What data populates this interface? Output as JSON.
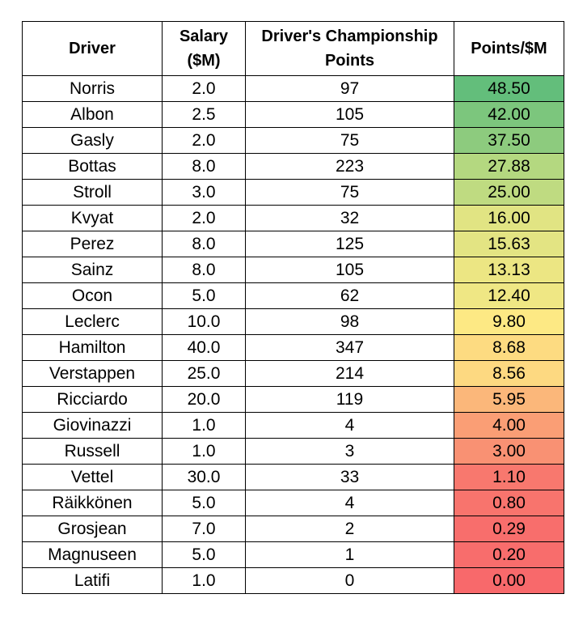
{
  "headers": {
    "driver": "Driver",
    "salary_line1": "Salary",
    "salary_line2": "($M)",
    "points_line1": "Driver's Championship",
    "points_line2": "Points",
    "ratio": "Points/$M"
  },
  "rows": [
    {
      "driver": "Norris",
      "salary": "2.0",
      "points": "97",
      "ratio": "48.50",
      "color": "#63BE7B"
    },
    {
      "driver": "Albon",
      "salary": "2.5",
      "points": "105",
      "ratio": "42.00",
      "color": "#7CC67D"
    },
    {
      "driver": "Gasly",
      "salary": "2.0",
      "points": "75",
      "ratio": "37.50",
      "color": "#8DCB7E"
    },
    {
      "driver": "Bottas",
      "salary": "8.0",
      "points": "223",
      "ratio": "27.88",
      "color": "#B4D880"
    },
    {
      "driver": "Stroll",
      "salary": "3.0",
      "points": "75",
      "ratio": "25.00",
      "color": "#BFDB81"
    },
    {
      "driver": "Kvyat",
      "salary": "2.0",
      "points": "32",
      "ratio": "16.00",
      "color": "#E1E483"
    },
    {
      "driver": "Perez",
      "salary": "8.0",
      "points": "125",
      "ratio": "15.63",
      "color": "#E3E483"
    },
    {
      "driver": "Sainz",
      "salary": "8.0",
      "points": "105",
      "ratio": "13.13",
      "color": "#ECE683"
    },
    {
      "driver": "Ocon",
      "salary": "5.0",
      "points": "62",
      "ratio": "12.40",
      "color": "#EFE784"
    },
    {
      "driver": "Leclerc",
      "salary": "10.0",
      "points": "98",
      "ratio": "9.80",
      "color": "#FDE984"
    },
    {
      "driver": "Hamilton",
      "salary": "40.0",
      "points": "347",
      "ratio": "8.68",
      "color": "#FDDB81"
    },
    {
      "driver": "Verstappen",
      "salary": "25.0",
      "points": "214",
      "ratio": "8.56",
      "color": "#FDD981"
    },
    {
      "driver": "Ricciardo",
      "salary": "20.0",
      "points": "119",
      "ratio": "5.95",
      "color": "#FBB77A"
    },
    {
      "driver": "Giovinazzi",
      "salary": "1.0",
      "points": "4",
      "ratio": "4.00",
      "color": "#FA9E75"
    },
    {
      "driver": "Russell",
      "salary": "1.0",
      "points": "3",
      "ratio": "3.00",
      "color": "#F99173"
    },
    {
      "driver": "Vettel",
      "salary": "30.0",
      "points": "33",
      "ratio": "1.10",
      "color": "#F8786E"
    },
    {
      "driver": "Räikkönen",
      "salary": "5.0",
      "points": "4",
      "ratio": "0.80",
      "color": "#F8746D"
    },
    {
      "driver": "Grosjean",
      "salary": "7.0",
      "points": "2",
      "ratio": "0.29",
      "color": "#F86E6C"
    },
    {
      "driver": "Magnuseen",
      "salary": "5.0",
      "points": "1",
      "ratio": "0.20",
      "color": "#F86D6C"
    },
    {
      "driver": "Latifi",
      "salary": "1.0",
      "points": "0",
      "ratio": "0.00",
      "color": "#F8696B"
    }
  ]
}
